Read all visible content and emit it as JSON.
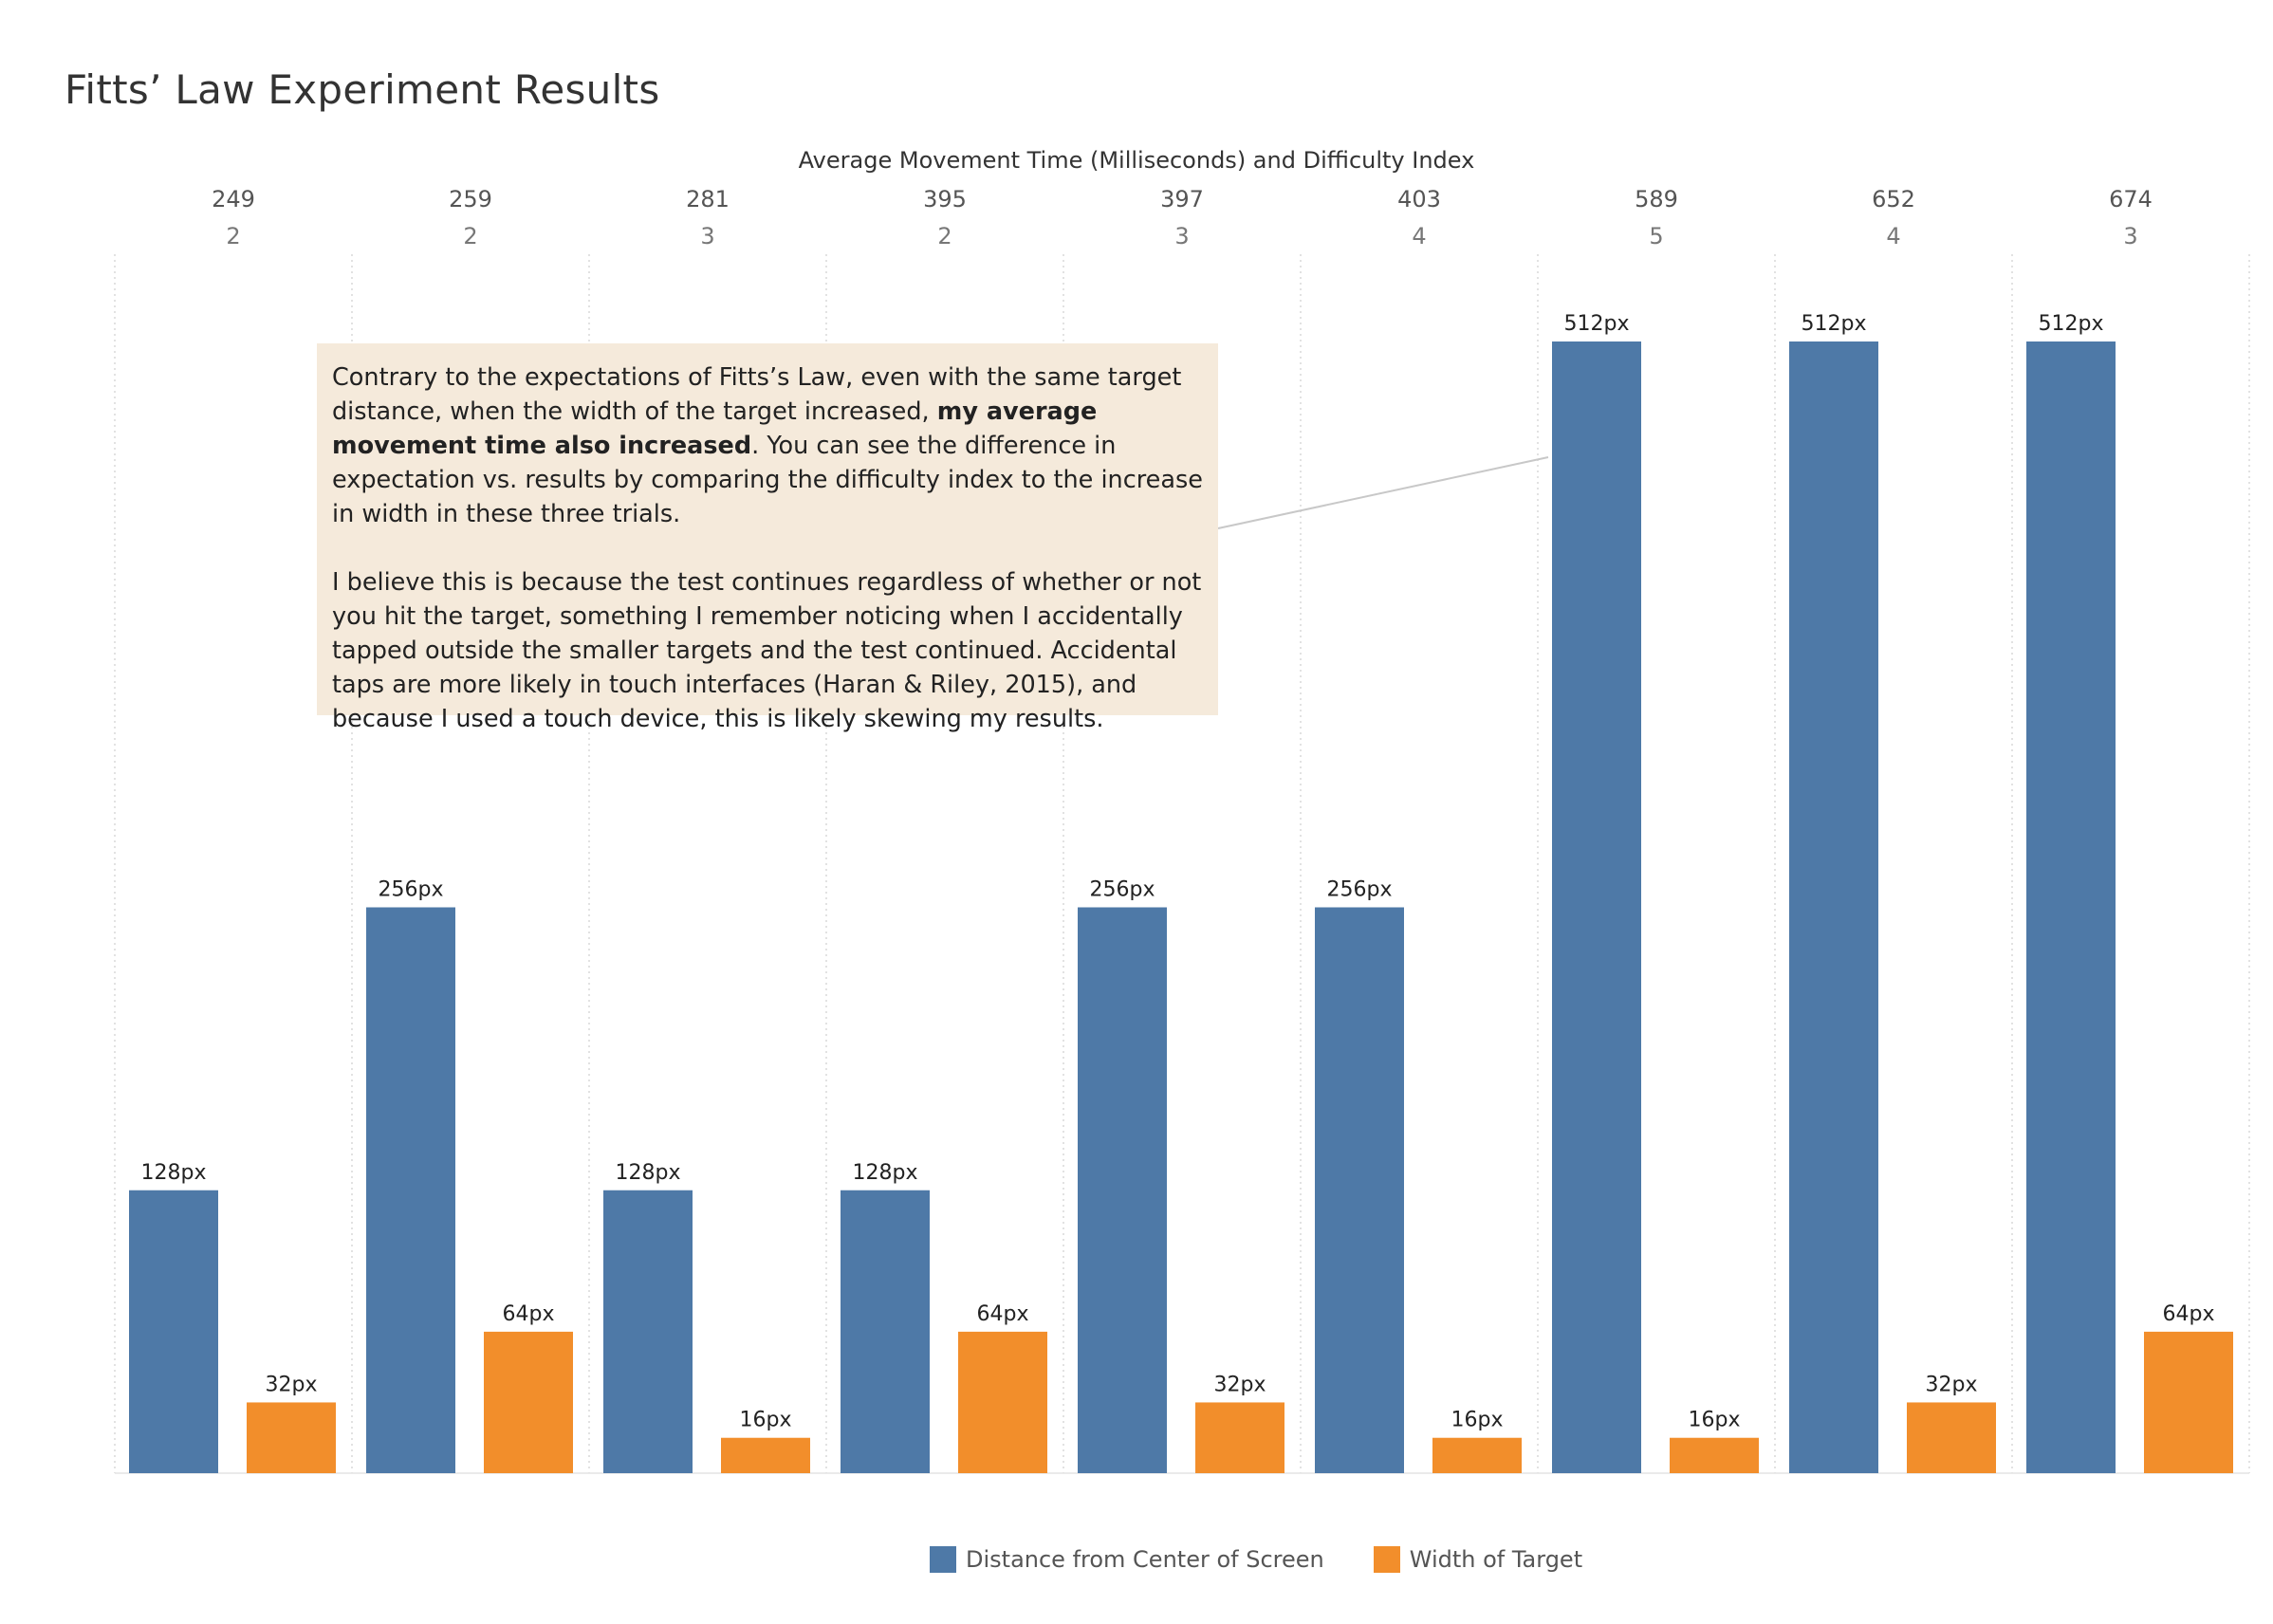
{
  "title": "Fitts’ Law Experiment Results",
  "colors": {
    "distance": "#4e79a7",
    "width": "#f28e2b",
    "annotation_bg": "#f5eadb"
  },
  "annotation": {
    "p1_before": "Contrary to the expectations of Fitts’s Law, even with the same target distance, when the width of the target increased, ",
    "p1_bold": "my average movement time also increased",
    "p1_after": ". You can see the difference in expectation vs. results by comparing the difficulty index to the increase in width in these three trials.",
    "p2": "I believe this is because the test continues regardless of whether or not you hit the target, something I remember noticing when I accidentally tapped outside the smaller targets and the test continued. Accidental taps are more likely in touch interfaces (Haran & Riley, 2015), and because I used a touch device, this is likely skewing my results."
  },
  "chart_data": {
    "type": "bar",
    "title": "Fitts’ Law Experiment Results",
    "header_label": "Average Movement Time (Milliseconds) and Difficulty Index",
    "categories": [
      {
        "time": "249",
        "index": "2"
      },
      {
        "time": "259",
        "index": "2"
      },
      {
        "time": "281",
        "index": "3"
      },
      {
        "time": "395",
        "index": "2"
      },
      {
        "time": "397",
        "index": "3"
      },
      {
        "time": "403",
        "index": "4"
      },
      {
        "time": "589",
        "index": "5"
      },
      {
        "time": "652",
        "index": "4"
      },
      {
        "time": "674",
        "index": "3"
      }
    ],
    "series": [
      {
        "name": "Distance from Center of Screen",
        "values": [
          128,
          256,
          128,
          128,
          256,
          256,
          512,
          512,
          512
        ],
        "labels": [
          "128px",
          "256px",
          "128px",
          "128px",
          "256px",
          "256px",
          "512px",
          "512px",
          "512px"
        ]
      },
      {
        "name": "Width of Target",
        "values": [
          32,
          64,
          16,
          64,
          32,
          16,
          16,
          32,
          64
        ],
        "labels": [
          "32px",
          "64px",
          "16px",
          "64px",
          "32px",
          "16px",
          "16px",
          "32px",
          "64px"
        ]
      }
    ],
    "ylim": [
      0,
      512
    ],
    "grid": false,
    "legend_position": "bottom-center",
    "highlight_categories": [
      6,
      7,
      8
    ]
  }
}
